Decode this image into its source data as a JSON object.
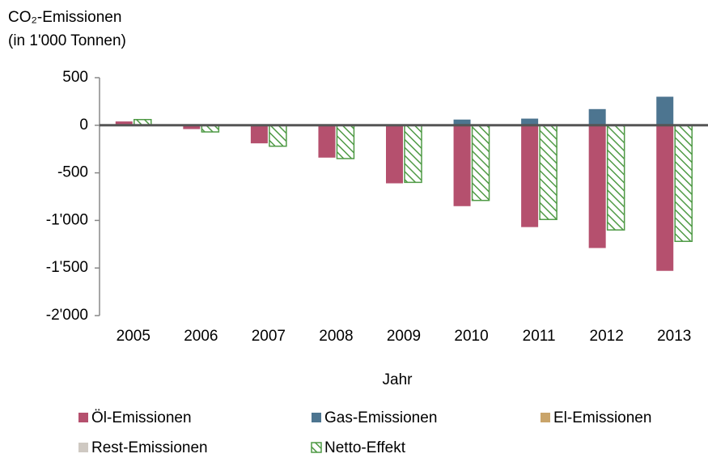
{
  "chart_data": {
    "type": "bar",
    "y_label": [
      "CO₂-Emissionen",
      "(in 1'000 Tonnen)"
    ],
    "x_label": "Jahr",
    "categories": [
      "2005",
      "2006",
      "2007",
      "2008",
      "2009",
      "2010",
      "2011",
      "2012",
      "2013"
    ],
    "series": [
      {
        "name": "Öl-Emissionen",
        "color": "#b5506e",
        "values": [
          40,
          -40,
          -190,
          -340,
          -610,
          -850,
          -1070,
          -1290,
          -1530
        ]
      },
      {
        "name": "Gas-Emissionen",
        "color": "#4d7590",
        "values": [
          0,
          0,
          0,
          0,
          0,
          60,
          70,
          170,
          300
        ]
      },
      {
        "name": "El-Emissionen",
        "color": "#c9a46a",
        "values": [
          0,
          0,
          0,
          0,
          0,
          0,
          0,
          0,
          0
        ]
      },
      {
        "name": "Rest-Emissionen",
        "color": "#cfc9c2",
        "values": [
          0,
          0,
          0,
          0,
          0,
          0,
          0,
          0,
          0
        ]
      },
      {
        "name": "Netto-Effekt",
        "color": "#4f9a45",
        "pattern": "hatch",
        "values": [
          60,
          -70,
          -220,
          -350,
          -600,
          -790,
          -990,
          -1100,
          -1220
        ]
      }
    ],
    "ylim": [
      -2000,
      500
    ],
    "yticks": [
      500,
      0,
      -500,
      {
        "value": -1000,
        "label": "-1'000"
      },
      {
        "value": -1500,
        "label": "-1'500"
      },
      {
        "value": -2000,
        "label": "-2'000"
      }
    ],
    "grid": false
  }
}
